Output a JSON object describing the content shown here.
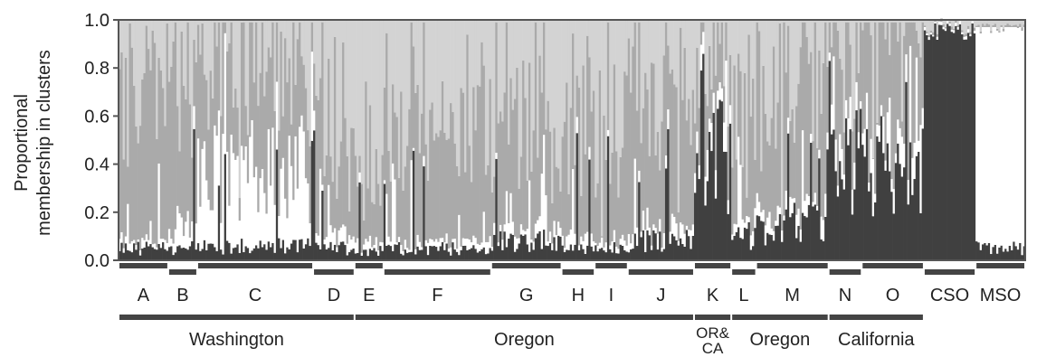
{
  "chart_data": {
    "type": "bar",
    "stacked": true,
    "normalized": true,
    "ylabel_lines": [
      "Proportional",
      "membership in clusters"
    ],
    "ylim": [
      0,
      1
    ],
    "yticks": [
      "0.0",
      "0.2",
      "0.4",
      "0.6",
      "0.8",
      "1.0"
    ],
    "colors": {
      "dark": "#404040",
      "white": "#ffffff",
      "mid": "#aaaaaa",
      "light": "#d3d3d3",
      "axis": "#555555",
      "bracket": "#444444"
    },
    "groups": [
      {
        "label": "A",
        "individuals": 24,
        "mean_dark": 0.05,
        "mean_white": 0.03,
        "mean_mid": 0.55
      },
      {
        "label": "B",
        "individuals": 14,
        "mean_dark": 0.04,
        "mean_white": 0.1,
        "mean_mid": 0.6
      },
      {
        "label": "C",
        "individuals": 56,
        "mean_dark": 0.06,
        "mean_white": 0.3,
        "mean_mid": 0.4
      },
      {
        "label": "D",
        "individuals": 20,
        "mean_dark": 0.05,
        "mean_white": 0.05,
        "mean_mid": 0.35
      },
      {
        "label": "E",
        "individuals": 14,
        "mean_dark": 0.04,
        "mean_white": 0.04,
        "mean_mid": 0.35
      },
      {
        "label": "F",
        "individuals": 52,
        "mean_dark": 0.05,
        "mean_white": 0.03,
        "mean_mid": 0.4
      },
      {
        "label": "G",
        "individuals": 34,
        "mean_dark": 0.08,
        "mean_white": 0.04,
        "mean_mid": 0.45
      },
      {
        "label": "H",
        "individuals": 16,
        "mean_dark": 0.05,
        "mean_white": 0.05,
        "mean_mid": 0.4
      },
      {
        "label": "I",
        "individuals": 16,
        "mean_dark": 0.05,
        "mean_white": 0.03,
        "mean_mid": 0.45
      },
      {
        "label": "J",
        "individuals": 32,
        "mean_dark": 0.08,
        "mean_white": 0.05,
        "mean_mid": 0.5
      },
      {
        "label": "K",
        "individuals": 18,
        "mean_dark": 0.45,
        "mean_white": 0.08,
        "mean_mid": 0.3
      },
      {
        "label": "L",
        "individuals": 12,
        "mean_dark": 0.1,
        "mean_white": 0.05,
        "mean_mid": 0.5
      },
      {
        "label": "M",
        "individuals": 35,
        "mean_dark": 0.15,
        "mean_white": 0.06,
        "mean_mid": 0.5
      },
      {
        "label": "N",
        "individuals": 16,
        "mean_dark": 0.4,
        "mean_white": 0.08,
        "mean_mid": 0.4
      },
      {
        "label": "O",
        "individuals": 30,
        "mean_dark": 0.35,
        "mean_white": 0.1,
        "mean_mid": 0.45
      },
      {
        "label": "CSO",
        "individuals": 25,
        "mean_dark": 0.95,
        "mean_white": 0.01,
        "mean_mid": 0.02
      },
      {
        "label": "MSO",
        "individuals": 24,
        "mean_dark": 0.05,
        "mean_white": 0.92,
        "mean_mid": 0.02
      }
    ],
    "regions": [
      {
        "label": "Washington",
        "from": "A",
        "to": "D"
      },
      {
        "label": "Oregon",
        "from": "E",
        "to": "J"
      },
      {
        "label": "OR&\nCA",
        "from": "K",
        "to": "K"
      },
      {
        "label": "Oregon",
        "from": "L",
        "to": "M"
      },
      {
        "label": "California",
        "from": "N",
        "to": "O"
      }
    ]
  }
}
